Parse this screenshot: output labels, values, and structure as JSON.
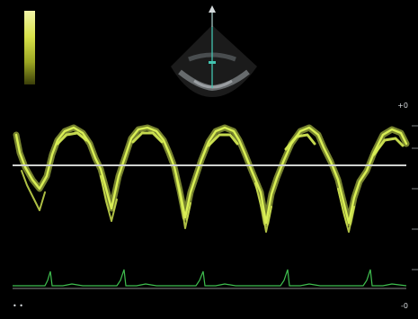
{
  "scale": {
    "top_right": "+0",
    "bottom_right": "-0",
    "bottom_left": "• •"
  },
  "colors": {
    "doppler_spectrum": "#d9ef55",
    "baseline": "#cfd2cf",
    "ecg_trace": "#3fbf4f",
    "ecg_axis": "#8a8a8a",
    "background": "#000000"
  }
}
